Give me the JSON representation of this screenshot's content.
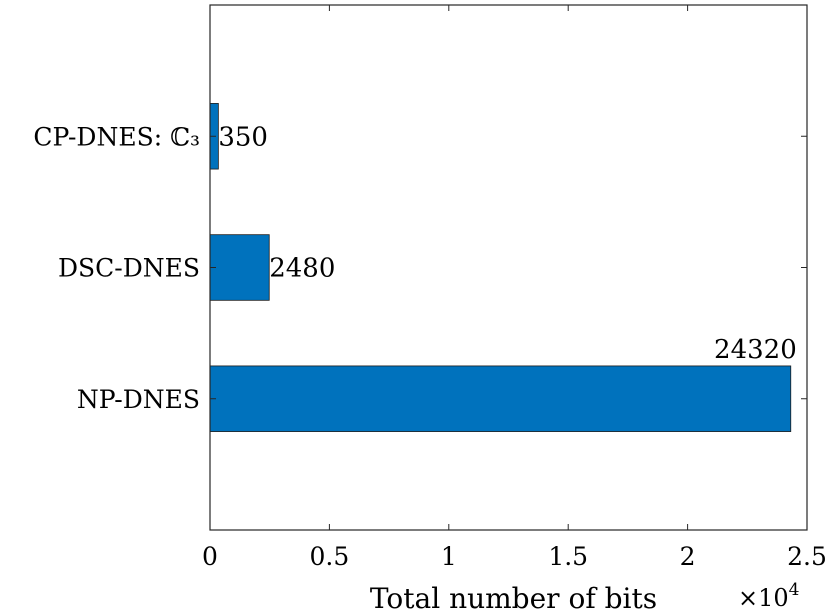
{
  "chart_data": {
    "type": "bar",
    "orientation": "horizontal",
    "categories": [
      "NP-DNES",
      "DSC-DNES",
      "CP-DNES: ℂ₃"
    ],
    "values": [
      24320,
      2480,
      350
    ],
    "data_labels": [
      "24320",
      "2480",
      "350"
    ],
    "xlabel": "Total number of bits",
    "xlim": [
      0,
      25000
    ],
    "x_ticks": [
      0,
      5000,
      10000,
      15000,
      20000,
      25000
    ],
    "x_tick_labels": [
      "0",
      "0.5",
      "1",
      "1.5",
      "2",
      "2.5"
    ],
    "x_exponent_label": "×10",
    "x_exponent_power": "4",
    "grid": false,
    "bar_color": "#0072BD"
  }
}
